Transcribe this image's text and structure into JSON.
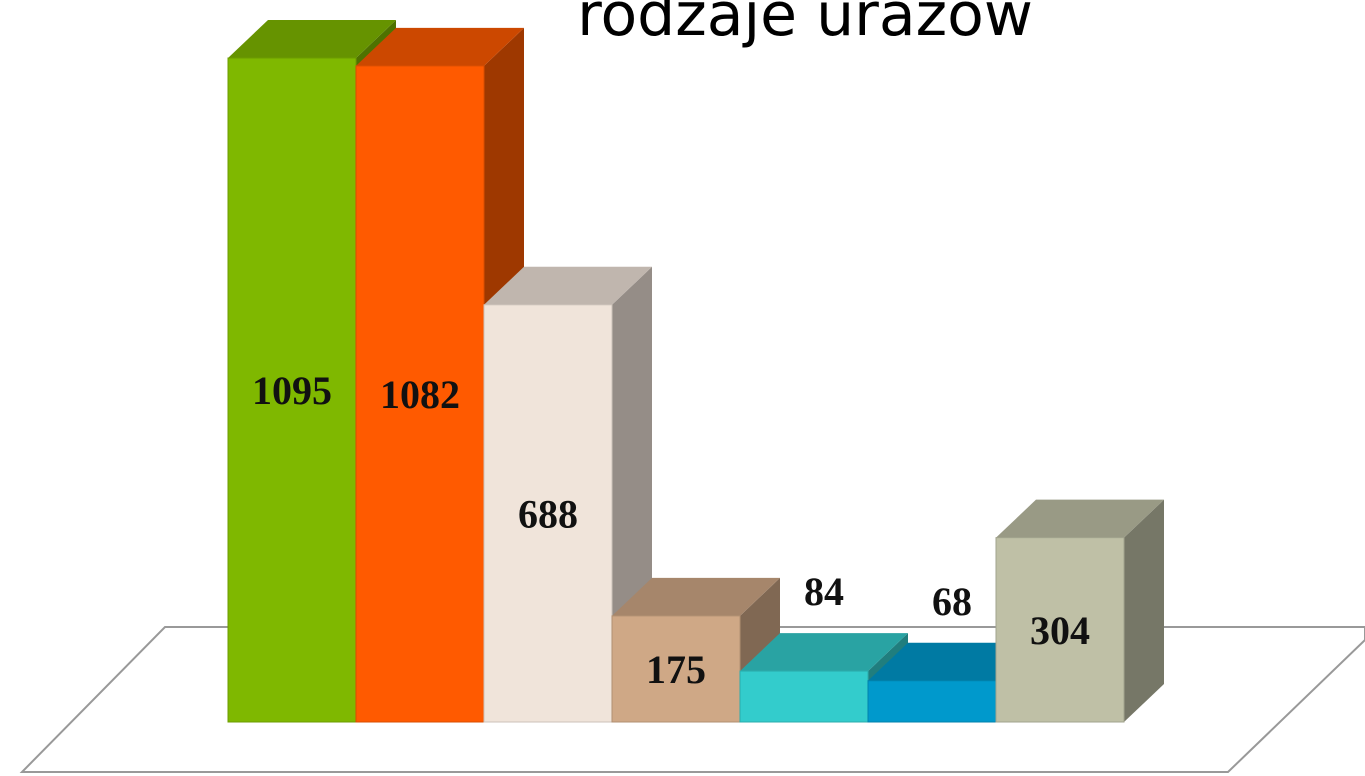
{
  "chart_data": {
    "type": "bar3d",
    "title": "rodzaje urazów",
    "categories": [
      null,
      null,
      null,
      null,
      null,
      null,
      null
    ],
    "values": [
      1095,
      1082,
      688,
      175,
      84,
      68,
      304
    ],
    "colors": [
      "#7fb800",
      "#ff5a00",
      "#f0e4da",
      "#cfa886",
      "#33cccc",
      "#0099cc",
      "#bfc0a6"
    ]
  }
}
